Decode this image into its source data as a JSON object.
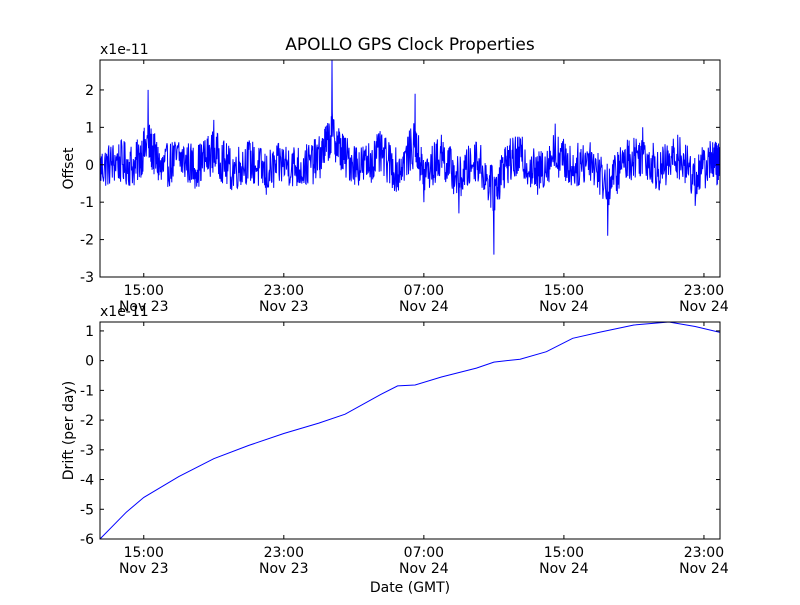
{
  "figure": {
    "title": "APOLLO GPS Clock Properties",
    "colors": {
      "line": "#0000ff",
      "axes": "#000000",
      "background": "#ffffff"
    }
  },
  "chart_data": [
    {
      "type": "line",
      "ylabel": "Offset",
      "xlabel": "",
      "scale_label": "x1e-11",
      "grid": false,
      "xlim": [
        "2013-11-23 12:30",
        "2013-11-24 23:55"
      ],
      "ylim": [
        -3,
        2.8
      ],
      "y_ticks": [
        -3,
        -2,
        -1,
        0,
        1,
        2
      ],
      "x_ticks": [
        {
          "time": "2013-11-23 15:00",
          "label_time": "15:00",
          "label_date": "Nov 23"
        },
        {
          "time": "2013-11-23 23:00",
          "label_time": "23:00",
          "label_date": "Nov 23"
        },
        {
          "time": "2013-11-24 07:00",
          "label_time": "07:00",
          "label_date": "Nov 24"
        },
        {
          "time": "2013-11-24 15:00",
          "label_time": "15:00",
          "label_date": "Nov 24"
        },
        {
          "time": "2013-11-24 23:00",
          "label_time": "23:00",
          "label_date": "Nov 24"
        }
      ],
      "series": [
        {
          "x": [
            "2013-11-23 12:30",
            "2013-11-23 13:30",
            "2013-11-23 14:30",
            "2013-11-23 15:15",
            "2013-11-23 16:00",
            "2013-11-23 17:00",
            "2013-11-23 18:00",
            "2013-11-23 19:00",
            "2013-11-23 20:00",
            "2013-11-23 21:00",
            "2013-11-23 22:00",
            "2013-11-23 23:00",
            "2013-11-24 00:00",
            "2013-11-24 01:00",
            "2013-11-24 01:45",
            "2013-11-24 02:30",
            "2013-11-24 03:30",
            "2013-11-24 04:30",
            "2013-11-24 05:30",
            "2013-11-24 06:30",
            "2013-11-24 07:00",
            "2013-11-24 08:00",
            "2013-11-24 09:00",
            "2013-11-24 10:00",
            "2013-11-24 11:00",
            "2013-11-24 11:40",
            "2013-11-24 12:30",
            "2013-11-24 13:30",
            "2013-11-24 14:30",
            "2013-11-24 15:30",
            "2013-11-24 16:30",
            "2013-11-24 17:30",
            "2013-11-24 18:30",
            "2013-11-24 19:30",
            "2013-11-24 20:30",
            "2013-11-24 21:30",
            "2013-11-24 22:30",
            "2013-11-24 23:30",
            "2013-11-24 23:55"
          ],
          "y": [
            -0.3,
            0.3,
            -0.1,
            2.0,
            -0.4,
            0.6,
            -0.2,
            1.2,
            -0.5,
            0.4,
            -0.8,
            0.2,
            -0.3,
            0.5,
            2.8,
            0.6,
            -0.1,
            0.9,
            -0.6,
            1.9,
            -1.0,
            0.8,
            -1.3,
            0.6,
            -2.4,
            0.2,
            0.7,
            -0.8,
            1.1,
            -0.3,
            0.6,
            -1.9,
            0.4,
            1.0,
            -0.5,
            0.8,
            -1.1,
            0.6,
            -0.2
          ]
        }
      ]
    },
    {
      "type": "line",
      "ylabel": "Drift (per day)",
      "xlabel": "Date (GMT)",
      "scale_label": "x1e-11",
      "grid": false,
      "xlim": [
        "2013-11-23 12:30",
        "2013-11-24 23:55"
      ],
      "ylim": [
        -6,
        1.3
      ],
      "y_ticks": [
        -6,
        -5,
        -4,
        -3,
        -2,
        -1,
        0,
        1
      ],
      "x_ticks": [
        {
          "time": "2013-11-23 15:00",
          "label_time": "15:00",
          "label_date": "Nov 23"
        },
        {
          "time": "2013-11-23 23:00",
          "label_time": "23:00",
          "label_date": "Nov 23"
        },
        {
          "time": "2013-11-24 07:00",
          "label_time": "07:00",
          "label_date": "Nov 24"
        },
        {
          "time": "2013-11-24 15:00",
          "label_time": "15:00",
          "label_date": "Nov 24"
        },
        {
          "time": "2013-11-24 23:00",
          "label_time": "23:00",
          "label_date": "Nov 24"
        }
      ],
      "series": [
        {
          "x": [
            "2013-11-23 12:30",
            "2013-11-23 14:00",
            "2013-11-23 15:00",
            "2013-11-23 17:00",
            "2013-11-23 19:00",
            "2013-11-23 21:00",
            "2013-11-23 23:00",
            "2013-11-24 01:00",
            "2013-11-24 02:30",
            "2013-11-24 04:30",
            "2013-11-24 05:30",
            "2013-11-24 06:30",
            "2013-11-24 08:00",
            "2013-11-24 10:00",
            "2013-11-24 11:00",
            "2013-11-24 12:30",
            "2013-11-24 14:00",
            "2013-11-24 15:30",
            "2013-11-24 17:00",
            "2013-11-24 19:00",
            "2013-11-24 21:00",
            "2013-11-24 22:30",
            "2013-11-24 23:55"
          ],
          "y": [
            -6.0,
            -5.1,
            -4.6,
            -3.9,
            -3.3,
            -2.85,
            -2.45,
            -2.1,
            -1.8,
            -1.15,
            -0.85,
            -0.82,
            -0.55,
            -0.25,
            -0.05,
            0.05,
            0.3,
            0.75,
            0.95,
            1.2,
            1.3,
            1.15,
            0.95
          ]
        }
      ]
    }
  ]
}
